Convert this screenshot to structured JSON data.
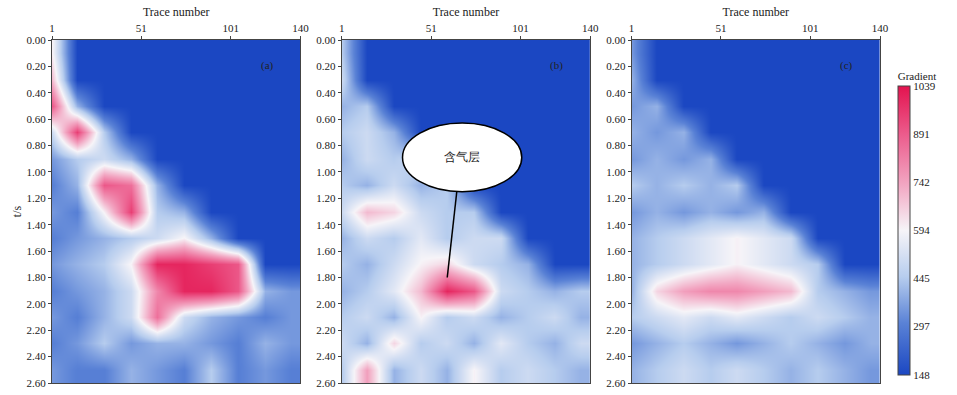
{
  "chart_data": [
    {
      "type": "heatmap",
      "label": "(a)",
      "x_title": "Trace number",
      "y_title": "t/s",
      "x": [
        1,
        15,
        30,
        45,
        60,
        75,
        90,
        105,
        120,
        135
      ],
      "y": [
        0.1,
        0.3,
        0.5,
        0.7,
        0.9,
        1.1,
        1.3,
        1.5,
        1.7,
        1.9,
        2.1,
        2.3,
        2.5
      ],
      "z": [
        [
          600,
          148,
          148,
          148,
          148,
          148,
          148,
          148,
          148,
          148
        ],
        [
          700,
          148,
          148,
          148,
          148,
          148,
          148,
          148,
          148,
          148
        ],
        [
          900,
          400,
          148,
          148,
          148,
          148,
          148,
          148,
          148,
          148
        ],
        [
          500,
          950,
          450,
          148,
          148,
          148,
          148,
          148,
          148,
          148
        ],
        [
          350,
          450,
          500,
          400,
          148,
          148,
          148,
          148,
          148,
          148
        ],
        [
          300,
          400,
          900,
          850,
          400,
          148,
          148,
          148,
          148,
          148
        ],
        [
          350,
          300,
          600,
          950,
          450,
          400,
          148,
          148,
          148,
          148
        ],
        [
          300,
          350,
          400,
          450,
          500,
          600,
          400,
          148,
          148,
          148
        ],
        [
          350,
          400,
          450,
          600,
          1000,
          1000,
          950,
          900,
          148,
          148
        ],
        [
          300,
          350,
          400,
          500,
          800,
          1000,
          1000,
          900,
          400,
          350
        ],
        [
          350,
          300,
          400,
          500,
          850,
          500,
          400,
          350,
          300,
          350
        ],
        [
          300,
          350,
          450,
          350,
          400,
          400,
          350,
          300,
          400,
          350
        ],
        [
          350,
          300,
          300,
          400,
          350,
          300,
          450,
          300,
          350,
          300
        ]
      ],
      "xlim": [
        1,
        140
      ],
      "xticks": [
        1,
        51,
        101,
        140
      ],
      "ylim": [
        2.6,
        0
      ],
      "yticks": [
        {
          "value": 0,
          "label": "0.00"
        },
        {
          "value": 0.2,
          "label": "0.20"
        },
        {
          "value": 0.4,
          "label": "0.40"
        },
        {
          "value": 0.6,
          "label": "0.60"
        },
        {
          "value": 0.8,
          "label": "0.80"
        },
        {
          "value": 1.0,
          "label": "1.00"
        },
        {
          "value": 1.2,
          "label": "1.20"
        },
        {
          "value": 1.4,
          "label": "1.40"
        },
        {
          "value": 1.6,
          "label": "1.60"
        },
        {
          "value": 1.8,
          "label": "1.80"
        },
        {
          "value": 2.0,
          "label": "2.00"
        },
        {
          "value": 2.2,
          "label": "2.20"
        },
        {
          "value": 2.4,
          "label": "2.40"
        },
        {
          "value": 2.6,
          "label": "2.60"
        }
      ]
    },
    {
      "type": "heatmap",
      "label": "(b)",
      "x_title": "Trace number",
      "x": [
        1,
        15,
        30,
        45,
        60,
        75,
        90,
        105,
        120,
        135
      ],
      "y": [
        0.1,
        0.3,
        0.5,
        0.7,
        0.9,
        1.1,
        1.3,
        1.5,
        1.7,
        1.9,
        2.1,
        2.3,
        2.5
      ],
      "z": [
        [
          450,
          148,
          148,
          148,
          148,
          148,
          148,
          148,
          148,
          148
        ],
        [
          500,
          148,
          148,
          148,
          148,
          148,
          148,
          148,
          148,
          148
        ],
        [
          400,
          450,
          148,
          148,
          148,
          148,
          148,
          148,
          148,
          148
        ],
        [
          450,
          500,
          400,
          148,
          148,
          148,
          148,
          148,
          148,
          148
        ],
        [
          400,
          500,
          450,
          500,
          148,
          148,
          148,
          148,
          148,
          148
        ],
        [
          450,
          400,
          500,
          400,
          450,
          148,
          148,
          148,
          148,
          148
        ],
        [
          500,
          700,
          650,
          500,
          450,
          450,
          148,
          148,
          148,
          148
        ],
        [
          400,
          500,
          450,
          550,
          450,
          500,
          500,
          148,
          148,
          148
        ],
        [
          450,
          400,
          500,
          600,
          650,
          500,
          450,
          400,
          148,
          148
        ],
        [
          400,
          450,
          550,
          700,
          1000,
          900,
          500,
          450,
          400,
          450
        ],
        [
          450,
          500,
          400,
          600,
          450,
          500,
          400,
          450,
          500,
          400
        ],
        [
          500,
          400,
          650,
          450,
          500,
          400,
          550,
          450,
          400,
          500
        ],
        [
          450,
          750,
          400,
          500,
          400,
          600,
          450,
          500,
          450,
          400
        ]
      ],
      "xlim": [
        1,
        140
      ],
      "xticks": [
        1,
        51,
        101,
        140
      ],
      "ylim": [
        2.6,
        0
      ],
      "yticks": [
        {
          "value": 0,
          "label": "0.00"
        },
        {
          "value": 0.2,
          "label": "0.20"
        },
        {
          "value": 0.4,
          "label": "0.40"
        },
        {
          "value": 0.6,
          "label": "0.60"
        },
        {
          "value": 0.8,
          "label": "0.80"
        },
        {
          "value": 1.0,
          "label": "1.00"
        },
        {
          "value": 1.2,
          "label": "1.20"
        },
        {
          "value": 1.4,
          "label": "1.40"
        },
        {
          "value": 1.6,
          "label": "1.60"
        },
        {
          "value": 1.8,
          "label": "1.80"
        },
        {
          "value": 2.0,
          "label": "2.00"
        },
        {
          "value": 2.2,
          "label": "2.20"
        },
        {
          "value": 2.4,
          "label": "2.40"
        },
        {
          "value": 2.6,
          "label": "2.60"
        }
      ],
      "annotations": [
        {
          "text": "含气层",
          "x": 60,
          "y": 1.8
        }
      ]
    },
    {
      "type": "heatmap",
      "label": "(c)",
      "x_title": "Trace number",
      "x": [
        1,
        15,
        30,
        45,
        60,
        75,
        90,
        105,
        120,
        135
      ],
      "y": [
        0.1,
        0.3,
        0.5,
        0.7,
        0.9,
        1.1,
        1.3,
        1.5,
        1.7,
        1.9,
        2.1,
        2.3,
        2.5
      ],
      "z": [
        [
          350,
          148,
          148,
          148,
          148,
          148,
          148,
          148,
          148,
          148
        ],
        [
          400,
          148,
          148,
          148,
          148,
          148,
          148,
          148,
          148,
          148
        ],
        [
          350,
          400,
          148,
          148,
          148,
          148,
          148,
          148,
          148,
          148
        ],
        [
          400,
          350,
          400,
          148,
          148,
          148,
          148,
          148,
          148,
          148
        ],
        [
          350,
          400,
          350,
          400,
          148,
          148,
          148,
          148,
          148,
          148
        ],
        [
          450,
          400,
          450,
          400,
          450,
          148,
          148,
          148,
          148,
          148
        ],
        [
          350,
          400,
          350,
          400,
          350,
          400,
          148,
          148,
          148,
          148
        ],
        [
          400,
          450,
          500,
          550,
          600,
          550,
          500,
          148,
          148,
          148
        ],
        [
          400,
          450,
          500,
          550,
          600,
          550,
          500,
          450,
          148,
          148
        ],
        [
          400,
          650,
          750,
          800,
          800,
          750,
          700,
          450,
          400,
          350
        ],
        [
          450,
          500,
          550,
          500,
          550,
          500,
          450,
          500,
          450,
          400
        ],
        [
          350,
          400,
          450,
          400,
          350,
          400,
          450,
          400,
          350,
          400
        ],
        [
          400,
          450,
          500,
          450,
          500,
          450,
          400,
          450,
          400,
          350
        ]
      ],
      "xlim": [
        1,
        140
      ],
      "xticks": [
        1,
        51,
        101,
        140
      ],
      "ylim": [
        2.6,
        0
      ],
      "yticks": [
        {
          "value": 0,
          "label": "0.00"
        },
        {
          "value": 0.2,
          "label": "0.20"
        },
        {
          "value": 0.4,
          "label": "0.40"
        },
        {
          "value": 0.6,
          "label": "0.60"
        },
        {
          "value": 0.8,
          "label": "0.80"
        },
        {
          "value": 1.0,
          "label": "1.00"
        },
        {
          "value": 1.2,
          "label": "1.20"
        },
        {
          "value": 1.4,
          "label": "1.40"
        },
        {
          "value": 1.6,
          "label": "1.60"
        },
        {
          "value": 1.8,
          "label": "1.80"
        },
        {
          "value": 2.0,
          "label": "2.00"
        },
        {
          "value": 2.2,
          "label": "2.20"
        },
        {
          "value": 2.4,
          "label": "2.40"
        },
        {
          "value": 2.6,
          "label": "2.60"
        }
      ],
      "colorbar": {
        "title": "Gradient",
        "range": [
          148,
          1039
        ],
        "ticks": [
          148,
          297,
          445,
          594,
          742,
          891,
          1039
        ]
      }
    }
  ]
}
